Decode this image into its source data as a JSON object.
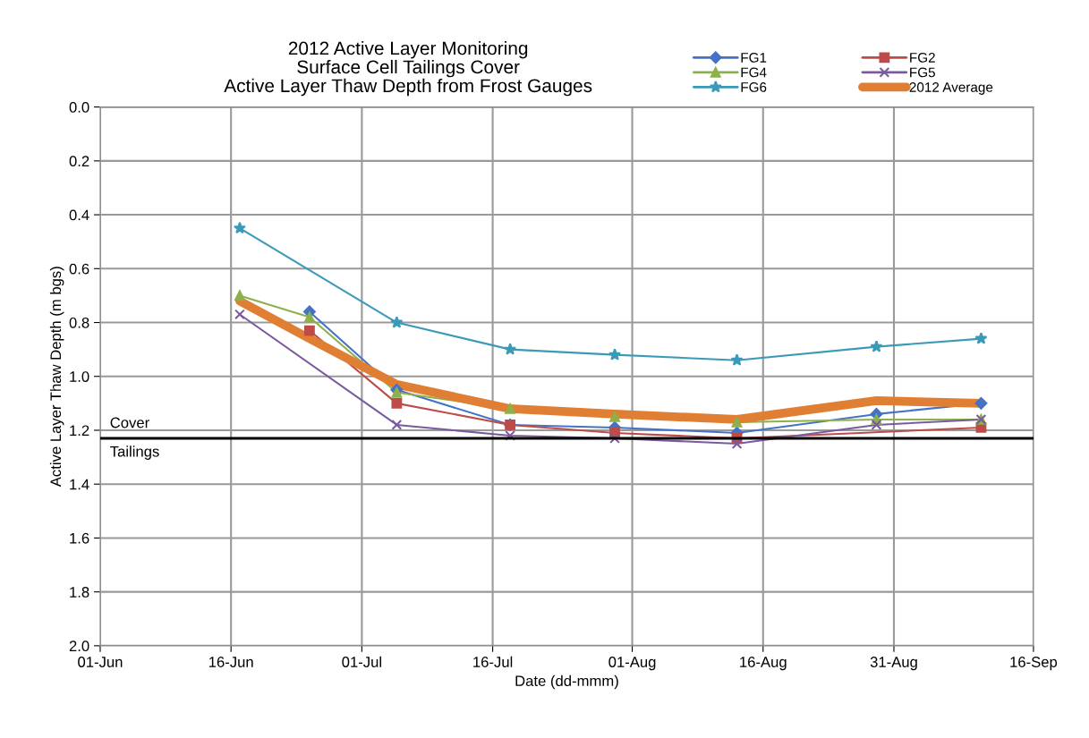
{
  "chart_data": {
    "type": "line",
    "title": "2012 Active Layer Monitoring\nSurface Cell Tailings Cover\nActive Layer Thaw Depth from Frost Gauges",
    "xlabel": "Date (dd-mmm)",
    "ylabel": "Active Layer Thaw Depth (m bgs)",
    "x": [
      "2012-06-17",
      "2012-06-25",
      "2012-07-05",
      "2012-07-18",
      "2012-07-30",
      "2012-08-13",
      "2012-08-29",
      "2012-09-10"
    ],
    "series": [
      {
        "name": "FG1",
        "color": "#4472c4",
        "marker": "diamond",
        "values": [
          null,
          0.76,
          1.05,
          1.18,
          1.19,
          1.21,
          1.14,
          1.1
        ]
      },
      {
        "name": "FG2",
        "color": "#be4b48",
        "marker": "square",
        "values": [
          null,
          0.83,
          1.1,
          1.18,
          1.21,
          1.23,
          null,
          1.19
        ]
      },
      {
        "name": "FG4",
        "color": "#8eb04b",
        "marker": "triangle",
        "values": [
          0.7,
          0.78,
          1.06,
          1.12,
          1.15,
          1.17,
          1.16,
          1.16
        ]
      },
      {
        "name": "FG5",
        "color": "#7a5a9e",
        "marker": "cross",
        "values": [
          0.77,
          null,
          1.18,
          1.22,
          1.23,
          1.25,
          1.18,
          1.16
        ]
      },
      {
        "name": "FG6",
        "color": "#3a9ab8",
        "marker": "star",
        "values": [
          0.45,
          null,
          0.8,
          0.9,
          0.92,
          0.94,
          0.89,
          0.86
        ]
      },
      {
        "name": "2012 Average",
        "color": "#e07f33",
        "marker": "none",
        "values": [
          0.72,
          0.86,
          1.03,
          1.12,
          1.14,
          1.16,
          1.09,
          1.1
        ]
      }
    ],
    "xlim": [
      "2012-06-01",
      "2012-09-16"
    ],
    "xticks": [
      {
        "value": "2012-06-01",
        "label": "01-Jun"
      },
      {
        "value": "2012-06-16",
        "label": "16-Jun"
      },
      {
        "value": "2012-07-01",
        "label": "01-Jul"
      },
      {
        "value": "2012-07-16",
        "label": "16-Jul"
      },
      {
        "value": "2012-08-01",
        "label": "01-Aug"
      },
      {
        "value": "2012-08-16",
        "label": "16-Aug"
      },
      {
        "value": "2012-08-31",
        "label": "31-Aug"
      },
      {
        "value": "2012-09-16",
        "label": "16-Sep"
      }
    ],
    "ylim": [
      2.0,
      0.0
    ],
    "yticks": [
      {
        "value": 0.0,
        "label": "0.0"
      },
      {
        "value": 0.2,
        "label": "0.2"
      },
      {
        "value": 0.4,
        "label": "0.4"
      },
      {
        "value": 0.6,
        "label": "0.6"
      },
      {
        "value": 0.8,
        "label": "0.8"
      },
      {
        "value": 1.0,
        "label": "1.0"
      },
      {
        "value": 1.2,
        "label": "1.2"
      },
      {
        "value": 1.4,
        "label": "1.4"
      },
      {
        "value": 1.6,
        "label": "1.6"
      },
      {
        "value": 1.8,
        "label": "1.8"
      },
      {
        "value": 2.0,
        "label": "2.0"
      }
    ],
    "ref_lines": [
      {
        "axis": "y",
        "value": 1.23,
        "label": null,
        "color": "#000000",
        "line_style": "solid"
      }
    ],
    "annotations": [
      "Cover",
      "Tailings"
    ],
    "grid": true,
    "legend": "top right",
    "line_style": "solid"
  }
}
